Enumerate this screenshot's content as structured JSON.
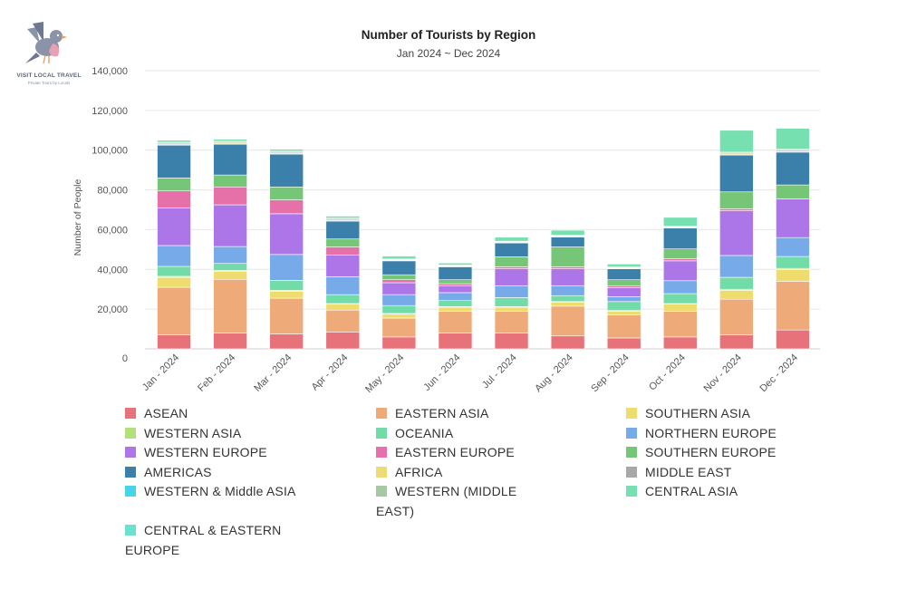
{
  "brand": {
    "name": "VISIT LOCAL TRAVEL",
    "tagline": "Private Tours by Locals"
  },
  "chart_data": {
    "type": "bar",
    "stacked": true,
    "title": "Number of Tourists by Region",
    "subtitle": "Jan 2024 ~ Dec 2024",
    "xlabel": "",
    "ylabel": "Number of People",
    "ylim": [
      0,
      140000
    ],
    "yticks": [
      0,
      20000,
      40000,
      60000,
      80000,
      100000,
      120000,
      140000
    ],
    "ytick_labels": [
      "0",
      "20,000",
      "40,000",
      "60,000",
      "80,000",
      "100,000",
      "120,000",
      "140,000"
    ],
    "grid": true,
    "legend_position": "bottom",
    "categories": [
      "Jan - 2024",
      "Feb - 2024",
      "Mar - 2024",
      "Apr - 2024",
      "May - 2024",
      "Jun - 2024",
      "Jul - 2024",
      "Aug - 2024",
      "Sep - 2024",
      "Oct - 2024",
      "Nov - 2024",
      "Dec - 2024"
    ],
    "series": [
      {
        "name": "ASEAN",
        "color": "#e8727a",
        "values": [
          7000,
          8000,
          7500,
          8500,
          6000,
          8000,
          8000,
          6500,
          5500,
          6000,
          7000,
          9500
        ]
      },
      {
        "name": "EASTERN ASIA",
        "color": "#eeaa78",
        "values": [
          24000,
          27000,
          18000,
          11000,
          9500,
          11000,
          11000,
          15000,
          11500,
          13000,
          18000,
          24500
        ]
      },
      {
        "name": "SOUTHERN ASIA",
        "color": "#eedc6c",
        "values": [
          5000,
          4000,
          3500,
          3000,
          2000,
          2000,
          2000,
          2000,
          2000,
          3500,
          4500,
          6000
        ]
      },
      {
        "name": "WESTERN ASIA",
        "color": "#b4e07c",
        "values": [
          500,
          500,
          500,
          300,
          300,
          300,
          300,
          300,
          300,
          300,
          500,
          500
        ]
      },
      {
        "name": "OCEANIA",
        "color": "#72dca8",
        "values": [
          5000,
          3500,
          5000,
          4500,
          4000,
          3000,
          4500,
          3000,
          4500,
          5000,
          6000,
          6000
        ]
      },
      {
        "name": "NORTHERN EUROPE",
        "color": "#76aae8",
        "values": [
          10500,
          8500,
          13000,
          9000,
          5500,
          4000,
          6000,
          5000,
          2500,
          6500,
          11000,
          9500
        ]
      },
      {
        "name": "WESTERN EUROPE",
        "color": "#ad76e8",
        "values": [
          19000,
          21000,
          20500,
          11000,
          6000,
          3500,
          8500,
          8500,
          4500,
          10000,
          22500,
          19500
        ]
      },
      {
        "name": "EASTERN EUROPE",
        "color": "#e670a8",
        "values": [
          8500,
          9000,
          7000,
          4000,
          1500,
          1000,
          1000,
          1000,
          1000,
          1000,
          1000,
          0
        ]
      },
      {
        "name": "SOUTHERN EUROPE",
        "color": "#76c678",
        "values": [
          6500,
          6000,
          6500,
          4000,
          2500,
          2000,
          5000,
          10000,
          3000,
          5000,
          8500,
          7000
        ]
      },
      {
        "name": "AMERICAS",
        "color": "#3a80aa",
        "values": [
          16500,
          15500,
          16500,
          9000,
          7000,
          6500,
          7000,
          5000,
          5500,
          10500,
          18500,
          16500
        ]
      },
      {
        "name": "AFRICA",
        "color": "#ecdc78",
        "values": [
          500,
          500,
          500,
          500,
          300,
          300,
          300,
          300,
          300,
          300,
          500,
          500
        ]
      },
      {
        "name": "MIDDLE EAST",
        "color": "#a8a8a8",
        "values": [
          500,
          500,
          500,
          500,
          300,
          300,
          300,
          300,
          300,
          300,
          500,
          500
        ]
      },
      {
        "name": "WESTERN & Middle ASIA",
        "color": "#48d4e8",
        "values": [
          0,
          0,
          0,
          0,
          0,
          0,
          0,
          0,
          0,
          0,
          0,
          0
        ]
      },
      {
        "name": "WESTERN (MIDDLE EAST)",
        "color": "#a6c8a2",
        "values": [
          500,
          500,
          500,
          500,
          300,
          300,
          300,
          300,
          300,
          300,
          500,
          500
        ]
      },
      {
        "name": "CENTRAL ASIA",
        "color": "#76e0b0",
        "values": [
          1000,
          1000,
          1000,
          1000,
          1500,
          1000,
          2000,
          2500,
          1500,
          4500,
          11000,
          10500
        ]
      },
      {
        "name": "CENTRAL & EASTERN EUROPE",
        "color": "#6ee0d0",
        "values": [
          0,
          0,
          0,
          0,
          0,
          0,
          0,
          0,
          0,
          0,
          0,
          0
        ]
      }
    ]
  }
}
